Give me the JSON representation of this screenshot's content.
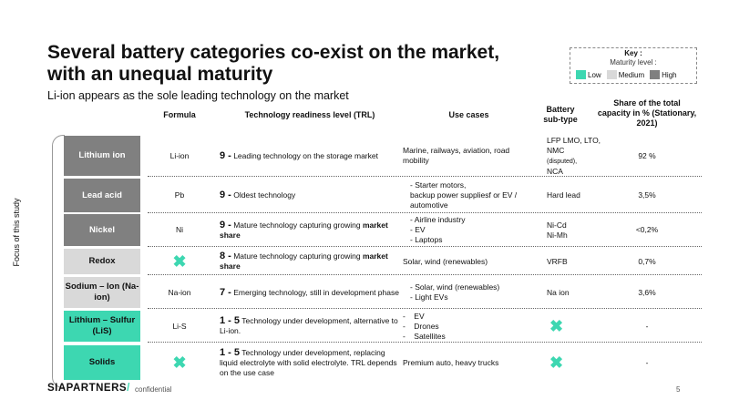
{
  "title": "Several battery categories co-exist on the market, with an unequal maturity",
  "subtitle": "Li-ion appears as the sole leading technology on the market",
  "key": {
    "title": "Key :",
    "subtitle": "Maturity level :",
    "items": [
      {
        "label": "Low",
        "color": "#3dd7b1"
      },
      {
        "label": "Medium",
        "color": "#d9d9d9"
      },
      {
        "label": "High",
        "color": "#808080"
      }
    ]
  },
  "headers": {
    "formula": "Formula",
    "trl": "Technology readiness level (TRL)",
    "use_cases": "Use cases",
    "subtype": "Battery sub-type",
    "share": "Share of the total capacity in % (Stationary, 2021)"
  },
  "side_label": "Focus of this study",
  "rows": [
    {
      "name": "Lithium ion",
      "maturity": "High",
      "formula": "Li-ion",
      "trl_num": "9 -",
      "trl_text": " Leading technology on the storage market",
      "trl_bold": "",
      "use_cases": "Marine, railways, aviation, road mobility",
      "subtype_main": "LFP LMO, LTO, NMC",
      "subtype_note": "(disputed),",
      "subtype_tail": "NCA",
      "share": "92 %"
    },
    {
      "name": "Lead acid",
      "maturity": "High",
      "formula": "Pb",
      "trl_num": "9 -",
      "trl_text": " Oldest technology",
      "trl_bold": "",
      "use_cases_list": [
        "- Starter motors,",
        "backup power suppliesf or EV / automotive"
      ],
      "subtype": "Hard lead",
      "share": "3,5%"
    },
    {
      "name": "Nickel",
      "maturity": "High",
      "formula": "Ni",
      "trl_num": "9 -",
      "trl_text": " Mature technology capturing growing ",
      "trl_bold": "market share",
      "use_cases_list": [
        "- Airline industry",
        "- EV",
        "- Laptops"
      ],
      "subtype": "Ni-Cd Ni-Mh",
      "share": "<0,2%"
    },
    {
      "name": "Redox",
      "maturity": "Medium",
      "formula": "✖",
      "trl_num": "8 -",
      "trl_text": " Mature technology capturing growing ",
      "trl_bold": "market share",
      "use_cases": "Solar, wind (renewables)",
      "subtype": "VRFB",
      "share": "0,7%"
    },
    {
      "name": "Sodium – Ion (Na-ion)",
      "maturity": "Medium",
      "formula": "Na-ion",
      "trl_num": "7 -",
      "trl_text": " Emerging technology, still in development phase",
      "trl_bold": "",
      "use_cases_list": [
        "- Solar, wind (renewables)",
        "- Light EVs"
      ],
      "subtype": "Na ion",
      "share": "3,6%"
    },
    {
      "name": "Lithium – Sulfur (LiS)",
      "maturity": "Low",
      "formula": "Li-S",
      "trl_num": "1 - 5",
      "trl_text": " Technology under development, alternative to Li-ion.",
      "trl_bold": "",
      "use_cases_list": [
        "-    EV",
        "-    Drones",
        "-    Satellites"
      ],
      "subtype": "✖",
      "share": "-"
    },
    {
      "name": "Solids",
      "maturity": "Low",
      "formula": "✖",
      "trl_num": "1 - 5",
      "trl_text": " Technology under development, replacing liquid electrolyte with solid electrolyte. TRL depends on the use case",
      "trl_bold": "",
      "use_cases": "Premium auto, heavy trucks",
      "subtype": "✖",
      "share": "-"
    }
  ],
  "footer": {
    "logo_text": "SIAPARTNERS",
    "logo_mark": "/",
    "confidential": "confidential",
    "page": "5"
  }
}
